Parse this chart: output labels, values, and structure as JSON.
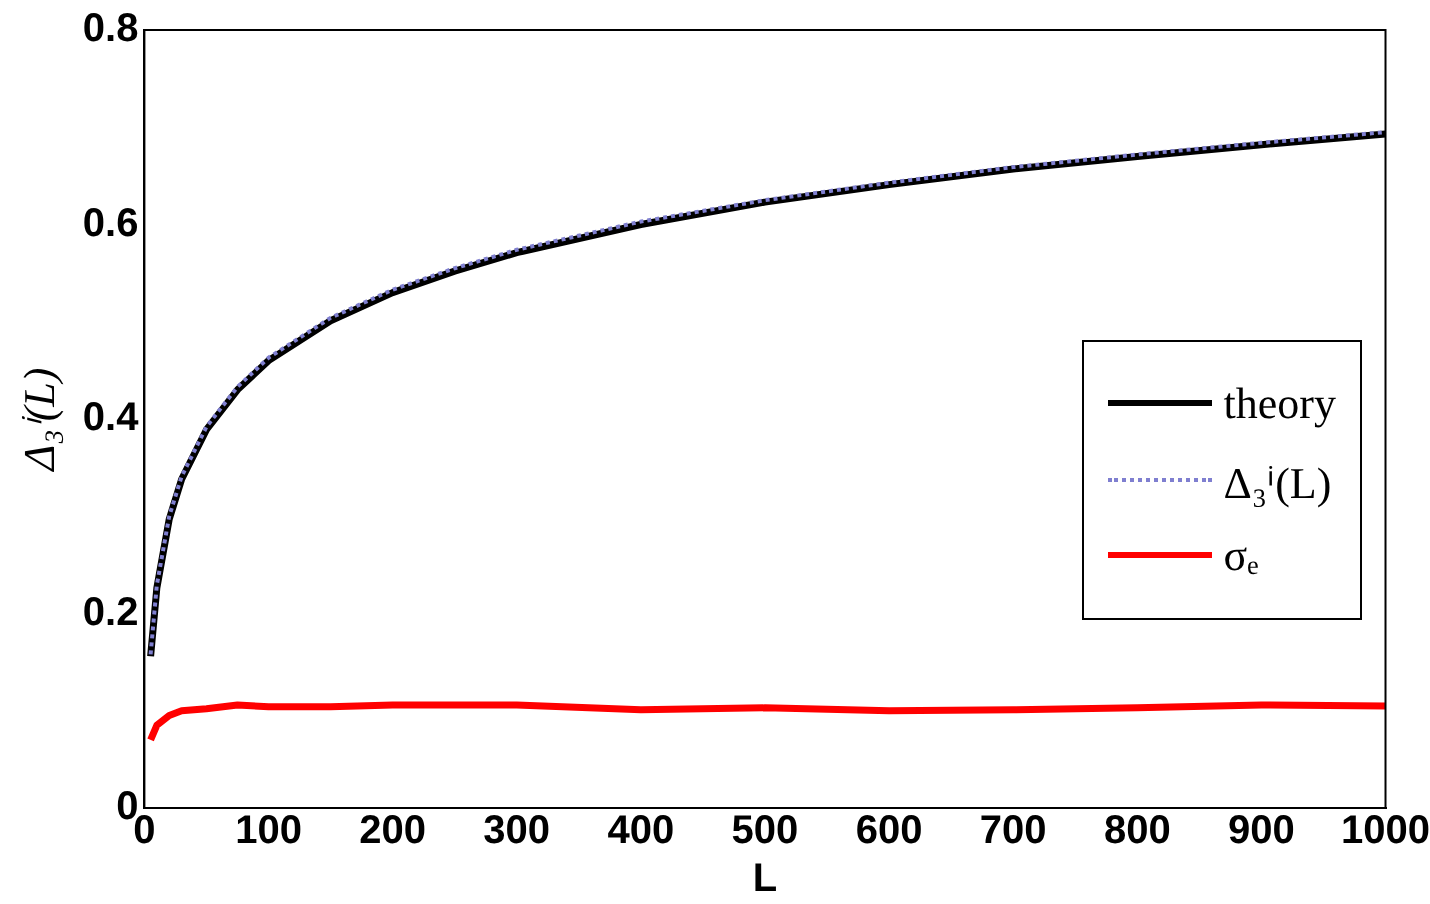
{
  "chart_data": {
    "type": "line",
    "xlabel": "L",
    "ylabel": "Δ₃ⁱ(L)",
    "x": [
      5,
      10,
      20,
      30,
      50,
      75,
      100,
      150,
      200,
      250,
      300,
      400,
      500,
      600,
      700,
      800,
      900,
      1000
    ],
    "series": [
      {
        "name": "theory",
        "color": "#000000",
        "line_style": "solid",
        "values": [
          0.156,
          0.226,
          0.297,
          0.338,
          0.389,
          0.43,
          0.46,
          0.501,
          0.53,
          0.552,
          0.571,
          0.6,
          0.623,
          0.641,
          0.657,
          0.67,
          0.682,
          0.693
        ]
      },
      {
        "name": "Δ₃ⁱ(L)",
        "color": "#7f7fd0",
        "line_style": "dotted",
        "values": [
          0.158,
          0.229,
          0.3,
          0.341,
          0.392,
          0.433,
          0.463,
          0.504,
          0.533,
          0.555,
          0.574,
          0.603,
          0.625,
          0.643,
          0.659,
          0.672,
          0.684,
          0.695
        ]
      },
      {
        "name": "σₑ",
        "color": "#ff0000",
        "line_style": "solid",
        "values": [
          0.07,
          0.085,
          0.095,
          0.1,
          0.102,
          0.106,
          0.104,
          0.104,
          0.106,
          0.106,
          0.106,
          0.101,
          0.103,
          0.1,
          0.101,
          0.103,
          0.106,
          0.105
        ]
      }
    ],
    "xlim": [
      0,
      1000
    ],
    "xticks": [
      0,
      100,
      200,
      300,
      400,
      500,
      600,
      700,
      800,
      900,
      1000
    ],
    "ylim": [
      0,
      0.8
    ],
    "yticks": [
      0,
      0.2,
      0.4,
      0.6,
      0.8
    ],
    "grid": false,
    "legend": "right",
    "marker": "none"
  }
}
